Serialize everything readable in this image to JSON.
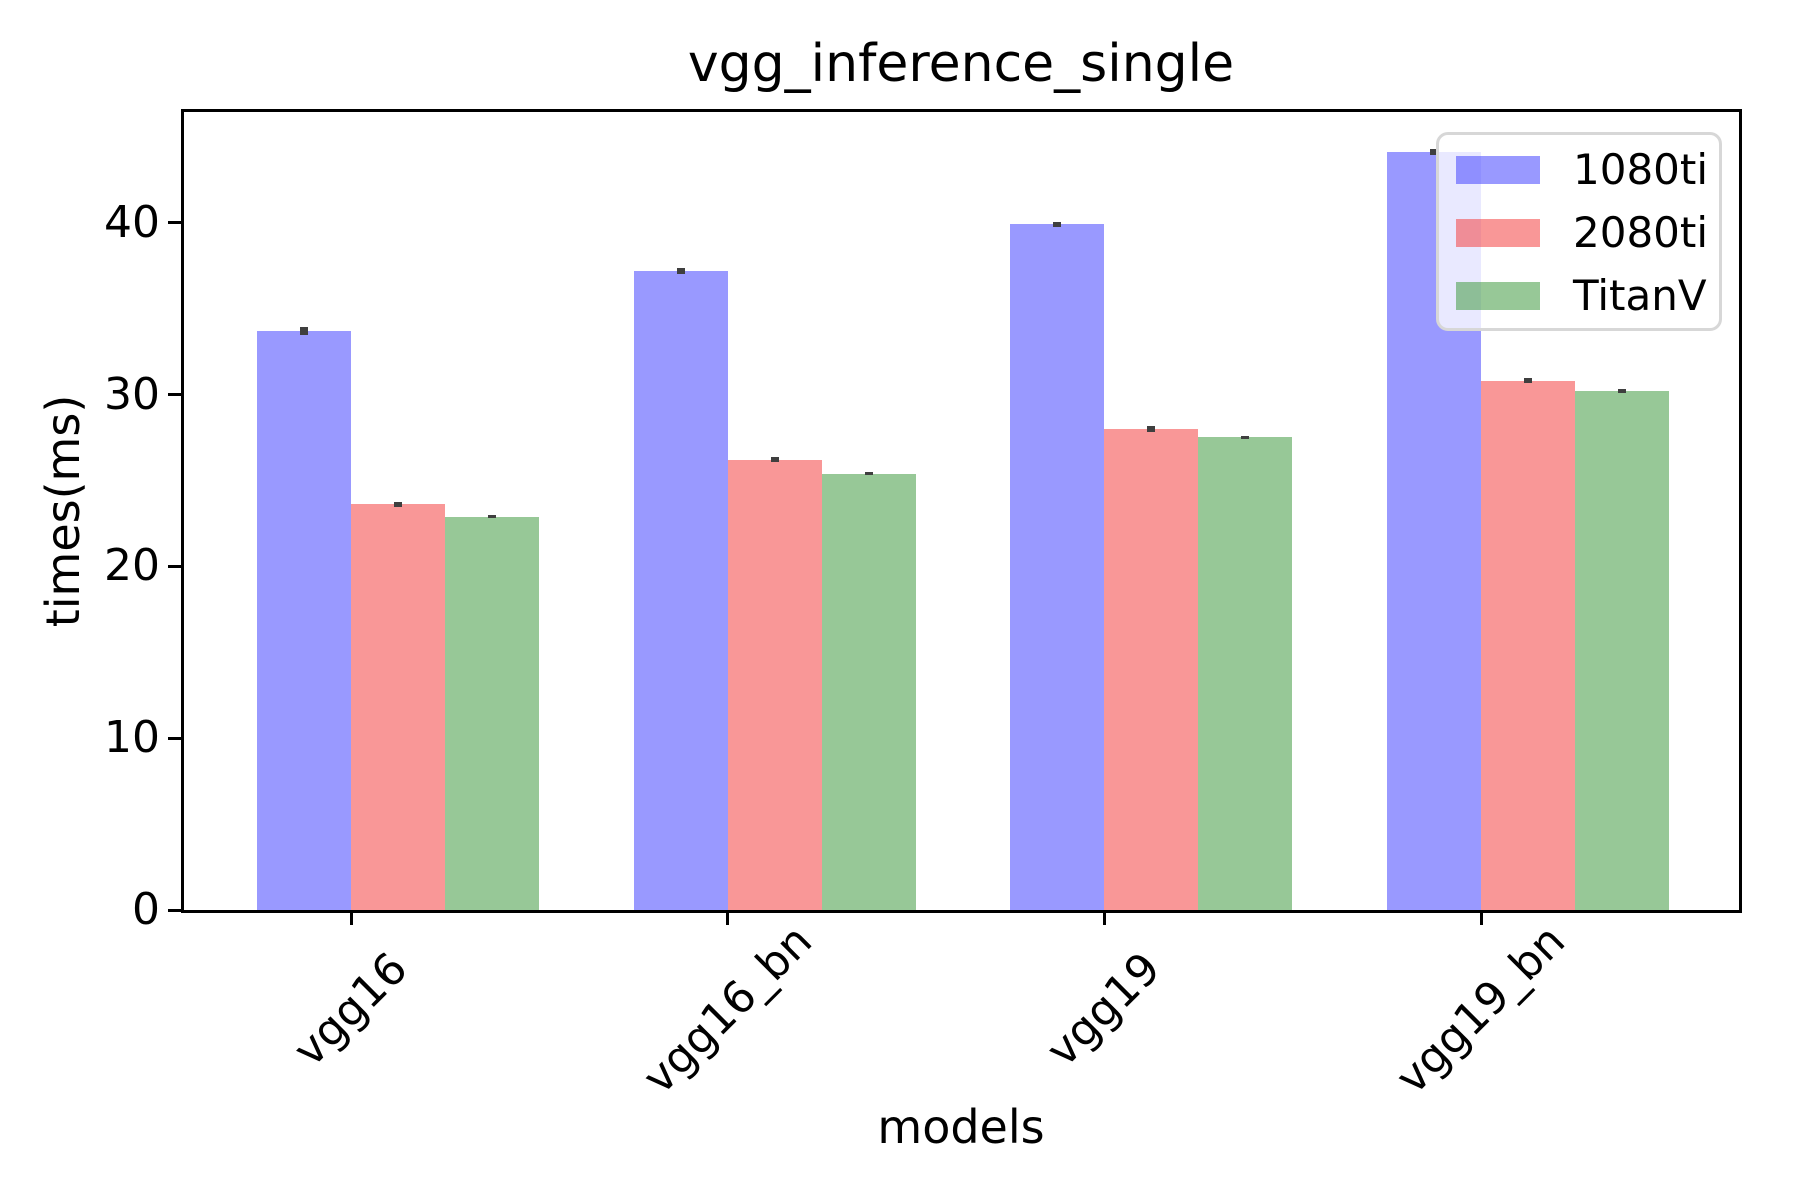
{
  "figure": {
    "title": "vgg_inference_single"
  },
  "chart_data": {
    "type": "bar",
    "title": "vgg_inference_single",
    "xlabel": "models",
    "ylabel": "times(ms)",
    "categories": [
      "vgg16",
      "vgg16_bn",
      "vgg19",
      "vgg19_bn"
    ],
    "series": [
      {
        "name": "1080ti",
        "color": "rgba(70,70,255,0.55)",
        "values": [
          33.7,
          37.2,
          39.9,
          44.1
        ],
        "errors": [
          0.15,
          0.12,
          0.1,
          0.12
        ]
      },
      {
        "name": "2080ti",
        "color": "rgba(244,66,66,0.55)",
        "values": [
          23.6,
          26.2,
          28.0,
          30.8
        ],
        "errors": [
          0.1,
          0.08,
          0.1,
          0.08
        ]
      },
      {
        "name": "TitanV",
        "color": "rgba(66,155,66,0.55)",
        "values": [
          22.9,
          25.4,
          27.5,
          30.2
        ],
        "errors": [
          0.05,
          0.05,
          0.05,
          0.05
        ]
      }
    ],
    "yticks": [
      0,
      10,
      20,
      30,
      40
    ],
    "ylim": [
      0,
      46.5
    ],
    "grid": false,
    "legend_position": "upper right",
    "error_color": "#3f3f3f",
    "axis_color": "#000000",
    "xtick_rotation_deg": 45
  }
}
